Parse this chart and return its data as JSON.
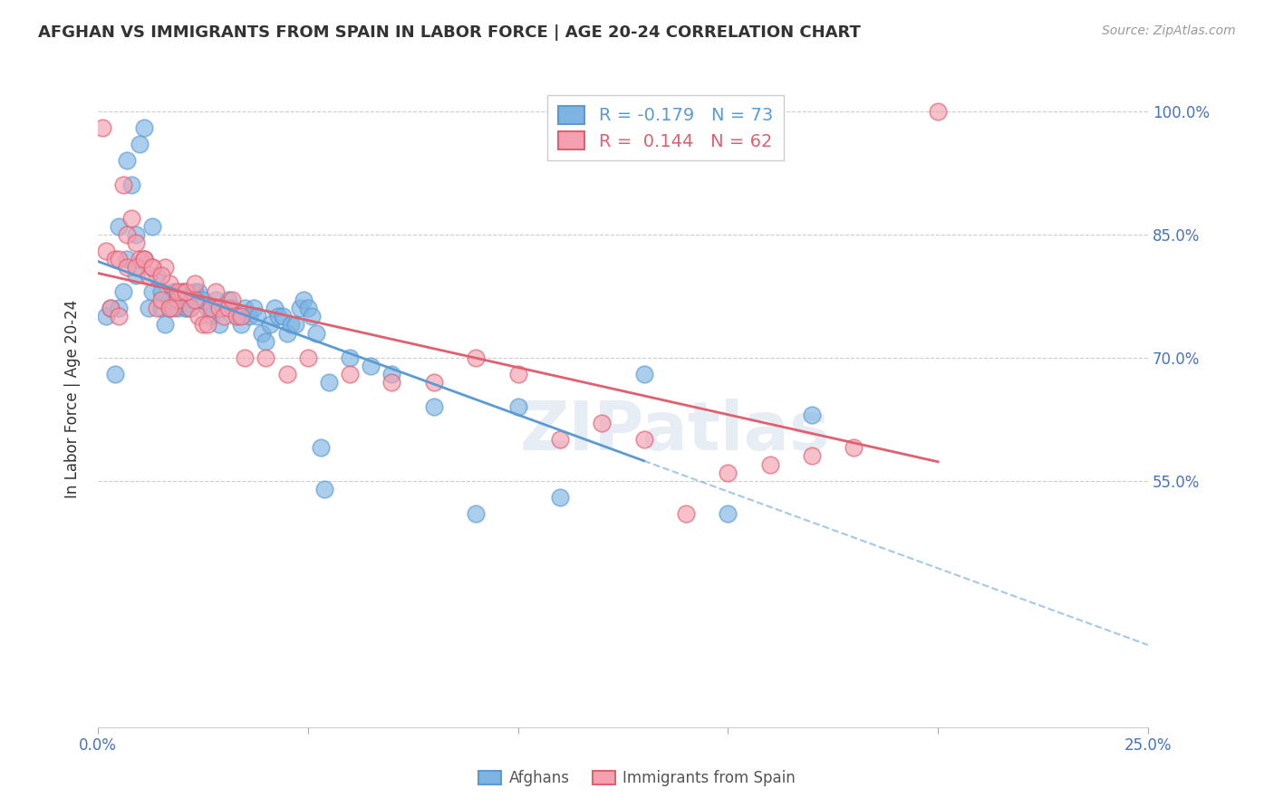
{
  "title": "AFGHAN VS IMMIGRANTS FROM SPAIN IN LABOR FORCE | AGE 20-24 CORRELATION CHART",
  "source": "Source: ZipAtlas.com",
  "ylabel": "In Labor Force | Age 20-24",
  "x_min": 0.0,
  "x_max": 0.25,
  "y_min": 0.25,
  "y_max": 1.05,
  "x_ticks": [
    0.0,
    0.05,
    0.1,
    0.15,
    0.2,
    0.25
  ],
  "x_tick_labels": [
    "0.0%",
    "",
    "",
    "",
    "",
    "25.0%"
  ],
  "y_ticks": [
    0.55,
    0.7,
    0.85,
    1.0
  ],
  "y_tick_labels": [
    "55.0%",
    "70.0%",
    "85.0%",
    "100.0%"
  ],
  "afghan_R": -0.179,
  "afghan_N": 73,
  "spain_R": 0.144,
  "spain_N": 62,
  "afghan_color": "#7EB4E2",
  "spain_color": "#F4A0B0",
  "afghan_line_color": "#5B9BD5",
  "spain_line_color": "#E06070",
  "legend_label_afghan": "Afghans",
  "legend_label_spain": "Immigrants from Spain",
  "watermark": "ZIPatlas",
  "afghan_x": [
    0.002,
    0.003,
    0.004,
    0.005,
    0.006,
    0.007,
    0.008,
    0.009,
    0.01,
    0.011,
    0.012,
    0.013,
    0.014,
    0.015,
    0.016,
    0.017,
    0.018,
    0.019,
    0.02,
    0.021,
    0.022,
    0.023,
    0.024,
    0.025,
    0.026,
    0.027,
    0.028,
    0.029,
    0.03,
    0.031,
    0.032,
    0.033,
    0.034,
    0.035,
    0.036,
    0.037,
    0.038,
    0.039,
    0.04,
    0.041,
    0.042,
    0.043,
    0.044,
    0.045,
    0.046,
    0.047,
    0.048,
    0.049,
    0.05,
    0.051,
    0.052,
    0.053,
    0.054,
    0.055,
    0.06,
    0.065,
    0.07,
    0.08,
    0.09,
    0.1,
    0.11,
    0.13,
    0.15,
    0.005,
    0.007,
    0.009,
    0.011,
    0.013,
    0.015,
    0.017,
    0.019,
    0.021,
    0.17
  ],
  "afghan_y": [
    0.75,
    0.76,
    0.68,
    0.76,
    0.78,
    0.82,
    0.91,
    0.85,
    0.96,
    0.98,
    0.76,
    0.78,
    0.8,
    0.76,
    0.74,
    0.76,
    0.78,
    0.76,
    0.78,
    0.76,
    0.76,
    0.78,
    0.78,
    0.77,
    0.76,
    0.75,
    0.77,
    0.74,
    0.76,
    0.77,
    0.76,
    0.75,
    0.74,
    0.76,
    0.75,
    0.76,
    0.75,
    0.73,
    0.72,
    0.74,
    0.76,
    0.75,
    0.75,
    0.73,
    0.74,
    0.74,
    0.76,
    0.77,
    0.76,
    0.75,
    0.73,
    0.59,
    0.54,
    0.67,
    0.7,
    0.69,
    0.68,
    0.64,
    0.51,
    0.64,
    0.53,
    0.68,
    0.51,
    0.86,
    0.94,
    0.8,
    0.82,
    0.86,
    0.78,
    0.77,
    0.77,
    0.76,
    0.63
  ],
  "spain_x": [
    0.001,
    0.002,
    0.003,
    0.004,
    0.005,
    0.006,
    0.007,
    0.008,
    0.009,
    0.01,
    0.011,
    0.012,
    0.013,
    0.014,
    0.015,
    0.016,
    0.017,
    0.018,
    0.019,
    0.02,
    0.021,
    0.022,
    0.023,
    0.024,
    0.025,
    0.026,
    0.027,
    0.028,
    0.029,
    0.03,
    0.031,
    0.032,
    0.033,
    0.034,
    0.035,
    0.04,
    0.045,
    0.05,
    0.06,
    0.07,
    0.08,
    0.09,
    0.1,
    0.11,
    0.12,
    0.13,
    0.14,
    0.15,
    0.16,
    0.17,
    0.18,
    0.005,
    0.007,
    0.009,
    0.011,
    0.013,
    0.015,
    0.017,
    0.019,
    0.021,
    0.023,
    0.2
  ],
  "spain_y": [
    0.98,
    0.83,
    0.76,
    0.82,
    0.82,
    0.91,
    0.85,
    0.87,
    0.84,
    0.82,
    0.82,
    0.8,
    0.81,
    0.76,
    0.77,
    0.81,
    0.79,
    0.76,
    0.77,
    0.78,
    0.78,
    0.76,
    0.77,
    0.75,
    0.74,
    0.74,
    0.76,
    0.78,
    0.76,
    0.75,
    0.76,
    0.77,
    0.75,
    0.75,
    0.7,
    0.7,
    0.68,
    0.7,
    0.68,
    0.67,
    0.67,
    0.7,
    0.68,
    0.6,
    0.62,
    0.6,
    0.51,
    0.56,
    0.57,
    0.58,
    0.59,
    0.75,
    0.81,
    0.81,
    0.82,
    0.81,
    0.8,
    0.76,
    0.78,
    0.78,
    0.79,
    1.0
  ]
}
